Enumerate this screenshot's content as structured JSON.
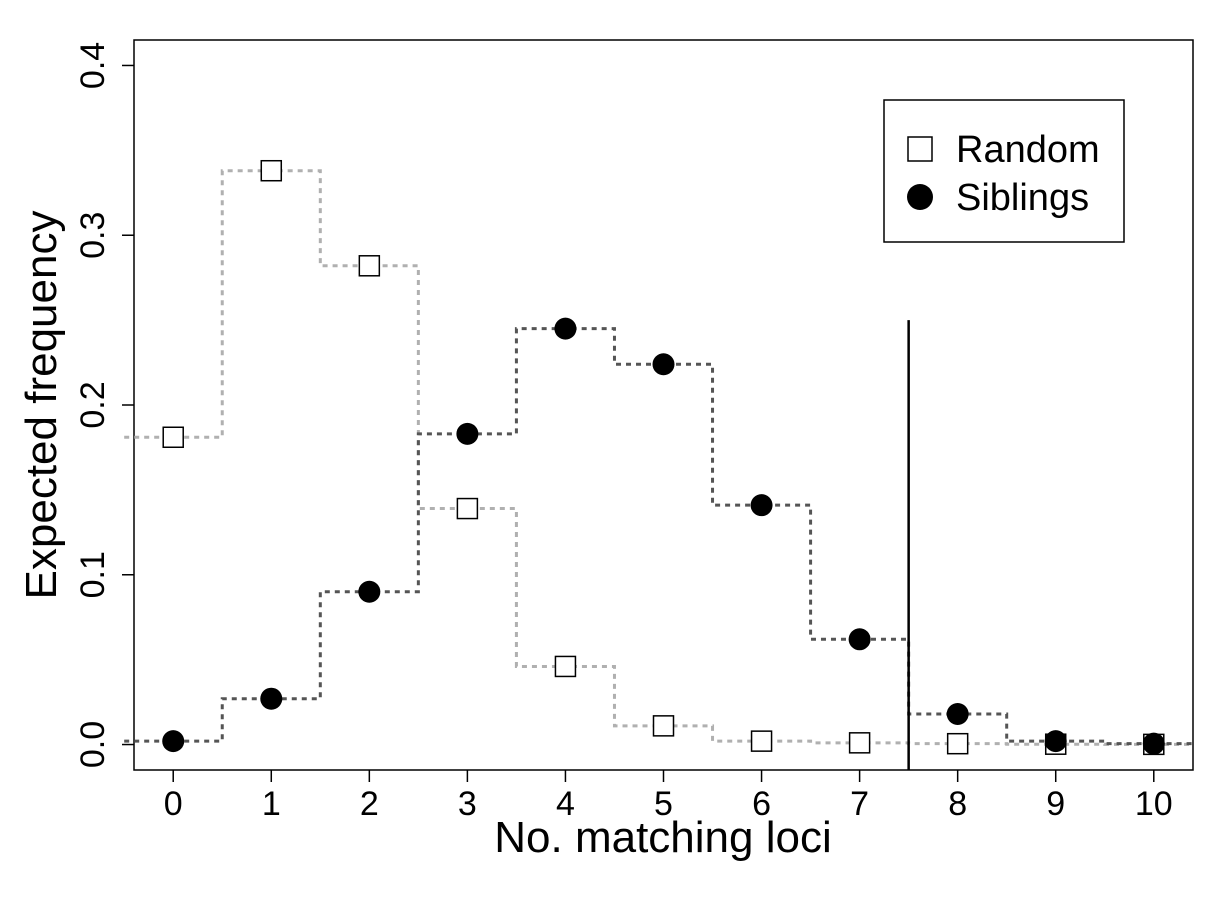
{
  "chart_data": {
    "type": "line",
    "xlabel": "No. matching loci",
    "ylabel": "Expected frequency",
    "x_ticks": [
      "0",
      "1",
      "2",
      "3",
      "4",
      "5",
      "6",
      "7",
      "8",
      "9",
      "10"
    ],
    "y_ticks": [
      "0.0",
      "0.1",
      "0.2",
      "0.3",
      "0.4"
    ],
    "x_tick_values": [
      0,
      1,
      2,
      3,
      4,
      5,
      6,
      7,
      8,
      9,
      10
    ],
    "y_tick_values": [
      0.0,
      0.1,
      0.2,
      0.3,
      0.4
    ],
    "xlim": [
      -0.4,
      10.4
    ],
    "ylim": [
      -0.015,
      0.415
    ],
    "x": [
      0,
      1,
      2,
      3,
      4,
      5,
      6,
      7,
      8,
      9,
      10
    ],
    "series": [
      {
        "name": "Random",
        "values": [
          0.181,
          0.338,
          0.282,
          0.139,
          0.046,
          0.011,
          0.002,
          0.001,
          0.0005,
          0.0002,
          0.0001
        ],
        "marker": "open-square",
        "line_color": "#b0b0b0"
      },
      {
        "name": "Siblings",
        "values": [
          0.002,
          0.027,
          0.09,
          0.183,
          0.245,
          0.224,
          0.141,
          0.062,
          0.018,
          0.002,
          0.0005
        ],
        "marker": "filled-circle",
        "line_color": "#555555"
      }
    ],
    "reference_line": {
      "x": 7.5,
      "y_top": 0.25
    },
    "legend_position": "top-right",
    "grid": false
  }
}
